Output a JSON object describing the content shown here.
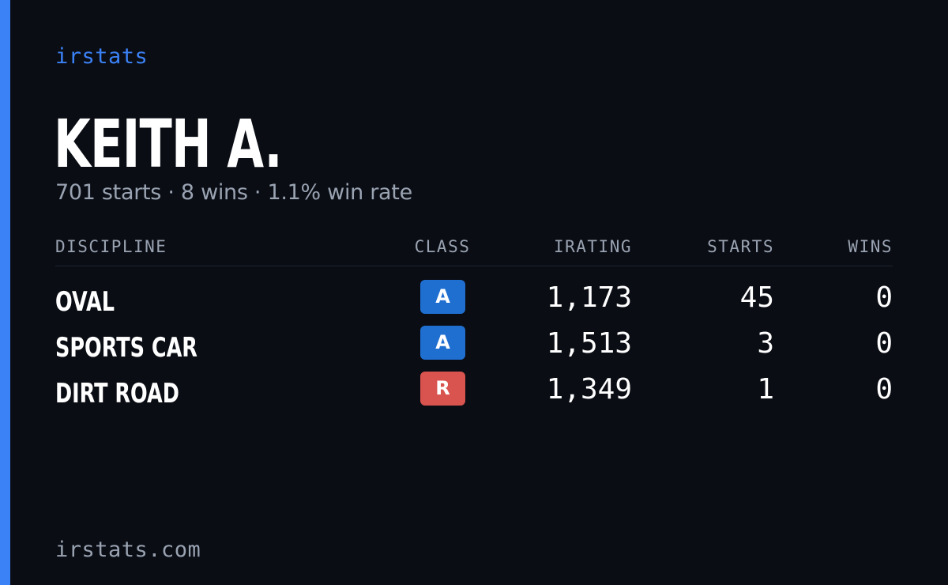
{
  "brand": "irstats",
  "player": {
    "name": "KEITH A.",
    "summary": "701 starts · 8 wins · 1.1% win rate"
  },
  "table": {
    "headers": {
      "discipline": "DISCIPLINE",
      "class": "CLASS",
      "irating": "IRATING",
      "starts": "STARTS",
      "wins": "WINS"
    },
    "rows": [
      {
        "discipline": "OVAL",
        "class": "A",
        "class_color": "#1f6fd1",
        "irating": "1,173",
        "starts": "45",
        "wins": "0"
      },
      {
        "discipline": "SPORTS CAR",
        "class": "A",
        "class_color": "#1f6fd1",
        "irating": "1,513",
        "starts": "3",
        "wins": "0"
      },
      {
        "discipline": "DIRT ROAD",
        "class": "R",
        "class_color": "#d9534f",
        "irating": "1,349",
        "starts": "1",
        "wins": "0"
      }
    ]
  },
  "footer": "irstats.com",
  "colors": {
    "accent": "#3b82f6",
    "background": "#0a0d14",
    "muted_text": "#9aa3b2"
  }
}
